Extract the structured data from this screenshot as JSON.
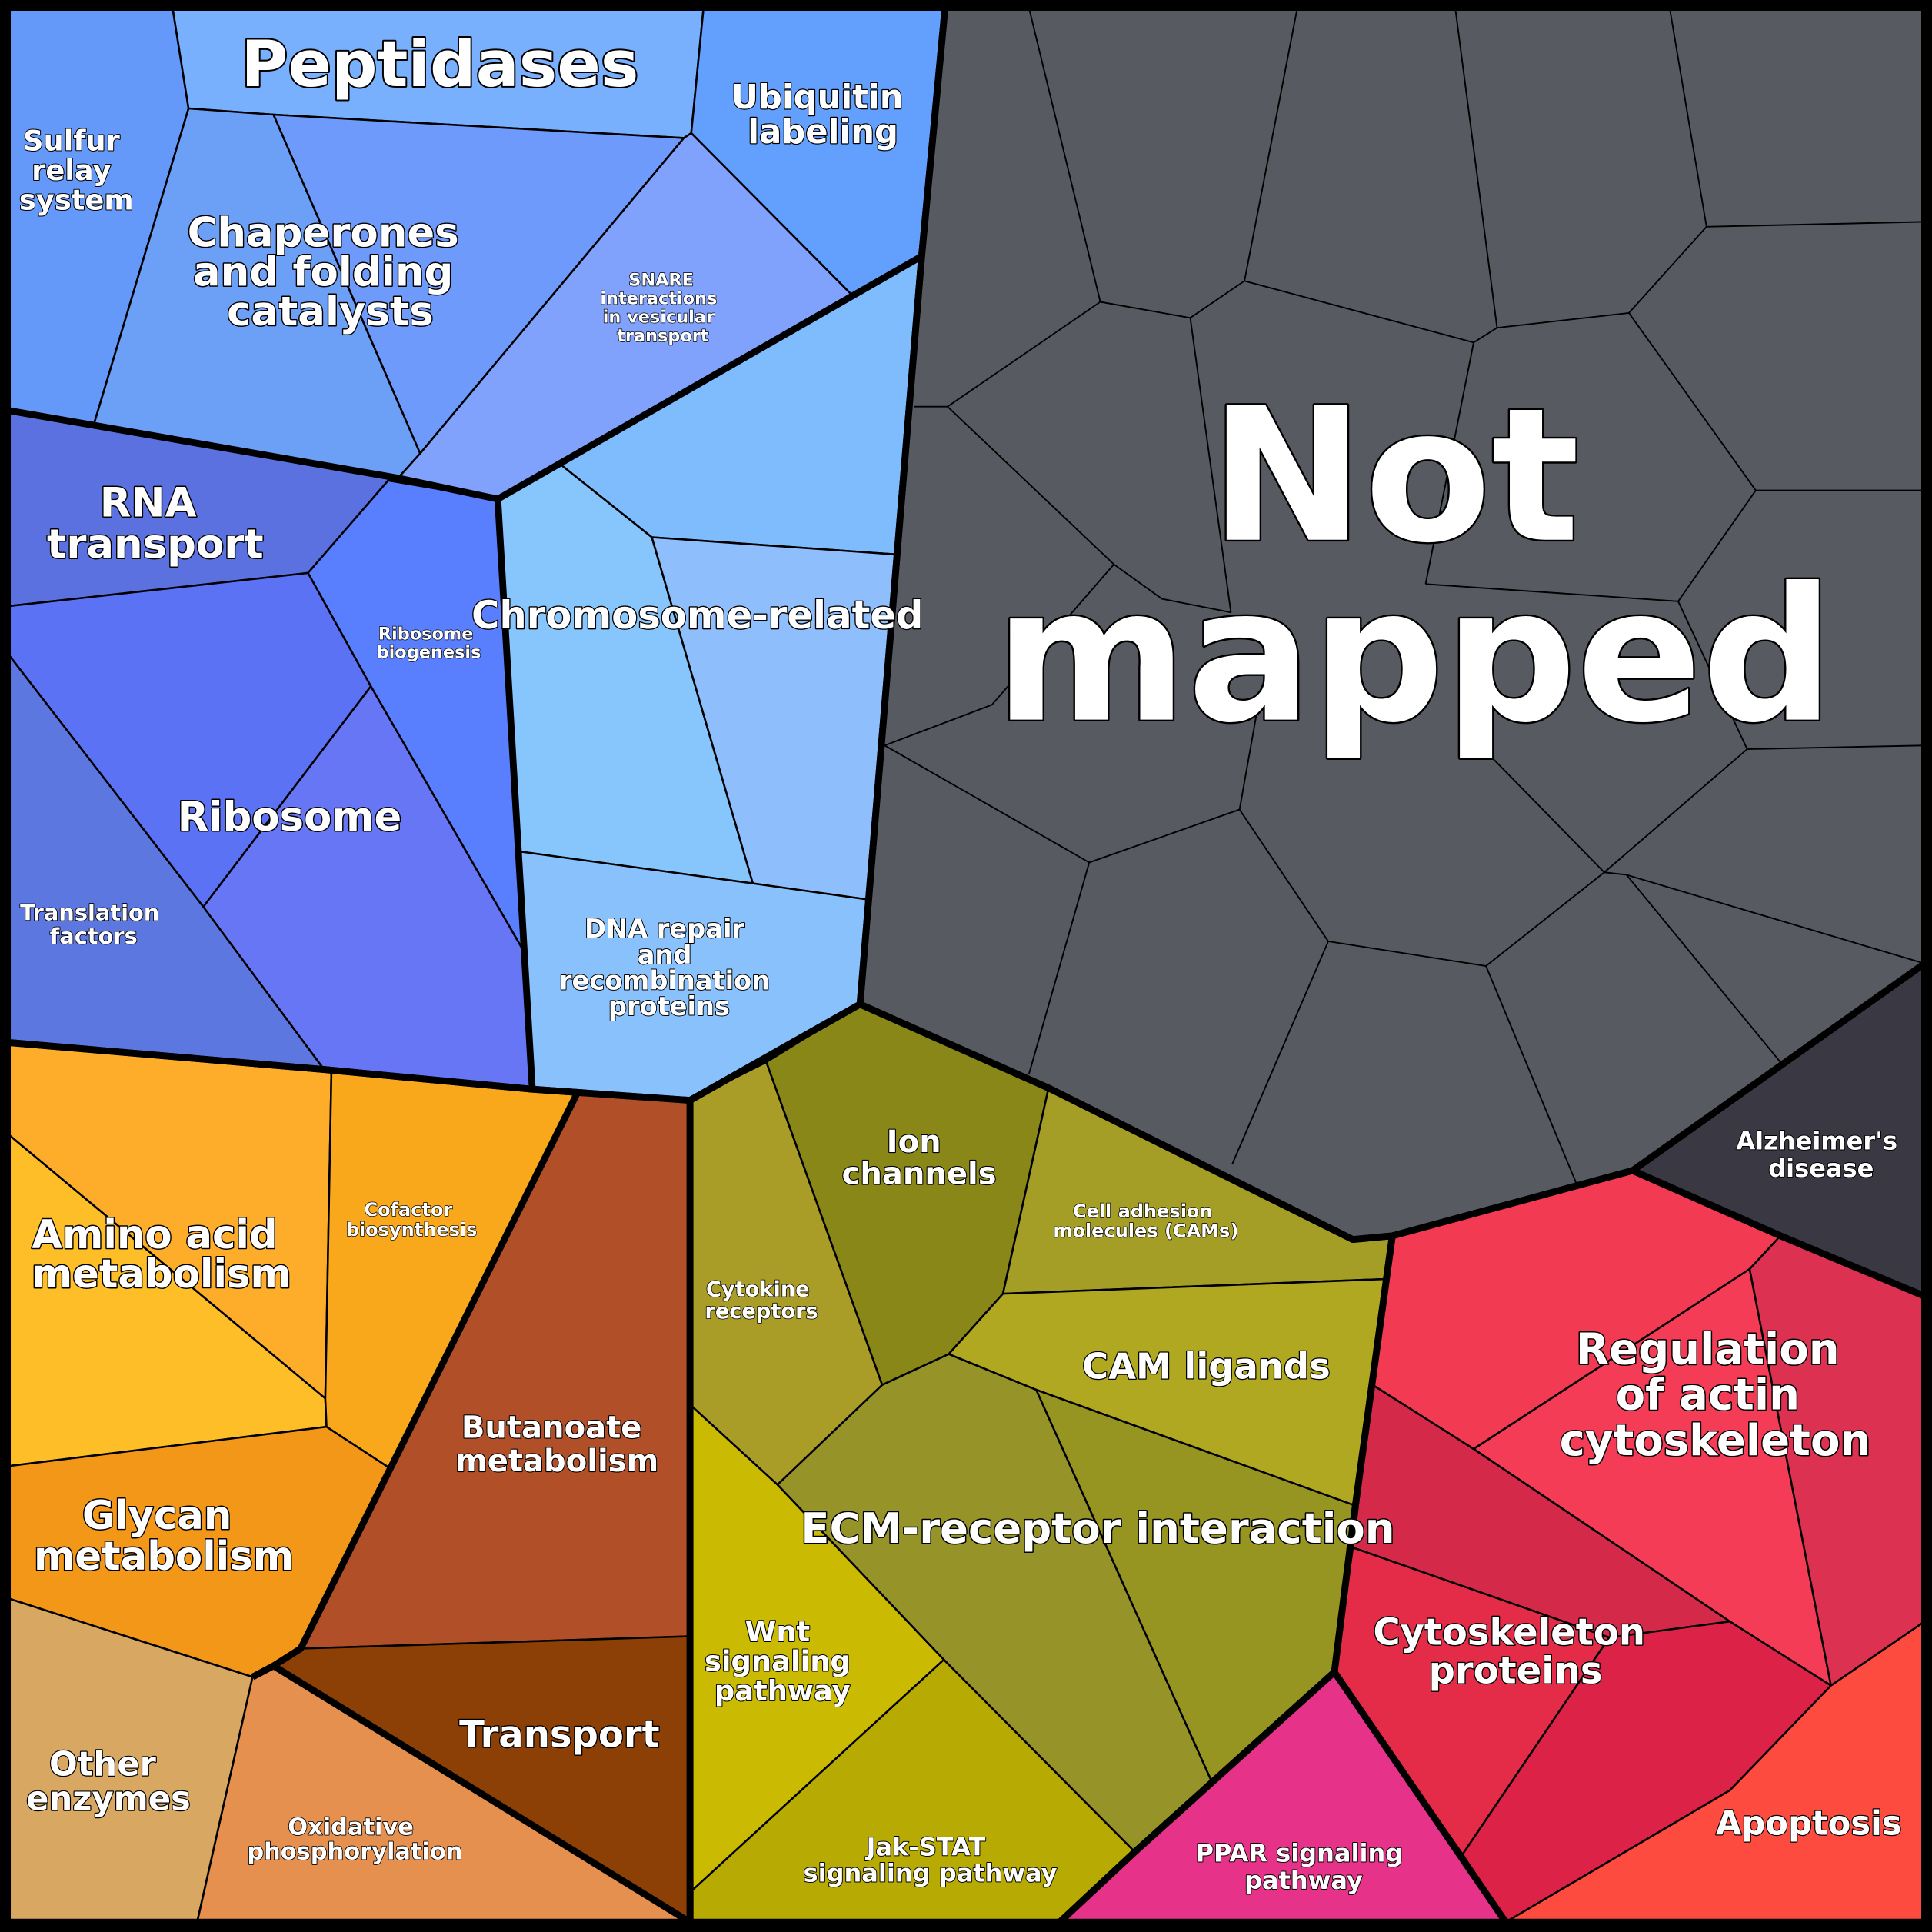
{
  "diagram": {
    "groups": [
      {
        "id": "genetic",
        "color": "#6799ff",
        "labels": [
          {
            "id": "peptidases",
            "text": "Peptidases"
          },
          {
            "id": "ubiquitin",
            "text": "Ubiquitin labeling"
          },
          {
            "id": "sulfur",
            "text": "Sulfur relay system"
          },
          {
            "id": "chaperones",
            "text": "Chaperones and folding catalysts"
          },
          {
            "id": "snare",
            "text": "SNARE interactions in vesicular transport"
          },
          {
            "id": "rna-transport",
            "text": "RNA transport"
          },
          {
            "id": "ribosome-biogenesis",
            "text": "Ribosome biogenesis"
          },
          {
            "id": "ribosome",
            "text": "Ribosome"
          },
          {
            "id": "translation-factors",
            "text": "Translation factors"
          },
          {
            "id": "chromosome",
            "text": "Chromosome-related"
          },
          {
            "id": "dna-repair",
            "text": "DNA repair and recombination proteins"
          }
        ]
      },
      {
        "id": "not-mapped",
        "color": "#575b61",
        "labels": [
          {
            "id": "not-mapped",
            "text": "Not mapped"
          }
        ]
      },
      {
        "id": "metabolism",
        "color": "#fbb02a",
        "labels": [
          {
            "id": "amino-acid",
            "text": "Amino acid metabolism"
          },
          {
            "id": "cofactor",
            "text": "Cofactor biosynthesis"
          },
          {
            "id": "butanoate",
            "text": "Butanoate metabolism"
          },
          {
            "id": "glycan",
            "text": "Glycan metabolism"
          },
          {
            "id": "transport",
            "text": "Transport"
          },
          {
            "id": "other-enzymes",
            "text": "Other enzymes"
          },
          {
            "id": "oxidative",
            "text": "Oxidative phosphorylation"
          }
        ]
      },
      {
        "id": "signaling",
        "color": "#a99b26",
        "labels": [
          {
            "id": "ion-channels",
            "text": "Ion channels"
          },
          {
            "id": "cams",
            "text": "Cell adhesion molecules (CAMs)"
          },
          {
            "id": "cytokine",
            "text": "Cytokine receptors"
          },
          {
            "id": "cam-ligands",
            "text": "CAM ligands"
          },
          {
            "id": "ecm",
            "text": "ECM-receptor interaction"
          },
          {
            "id": "wnt",
            "text": "Wnt signaling pathway"
          },
          {
            "id": "jak-stat",
            "text": "Jak-STAT signaling pathway"
          }
        ]
      },
      {
        "id": "alzheimers",
        "color": "#393843",
        "labels": [
          {
            "id": "alzheimers",
            "text": "Alzheimer's disease"
          }
        ]
      },
      {
        "id": "cellular",
        "color": "#f23a52",
        "labels": [
          {
            "id": "actin",
            "text": "Regulation of actin cytoskeleton"
          },
          {
            "id": "cytoskeleton",
            "text": "Cytoskeleton proteins"
          },
          {
            "id": "ppar",
            "text": "PPAR signaling pathway"
          },
          {
            "id": "apoptosis",
            "text": "Apoptosis"
          }
        ]
      }
    ]
  }
}
